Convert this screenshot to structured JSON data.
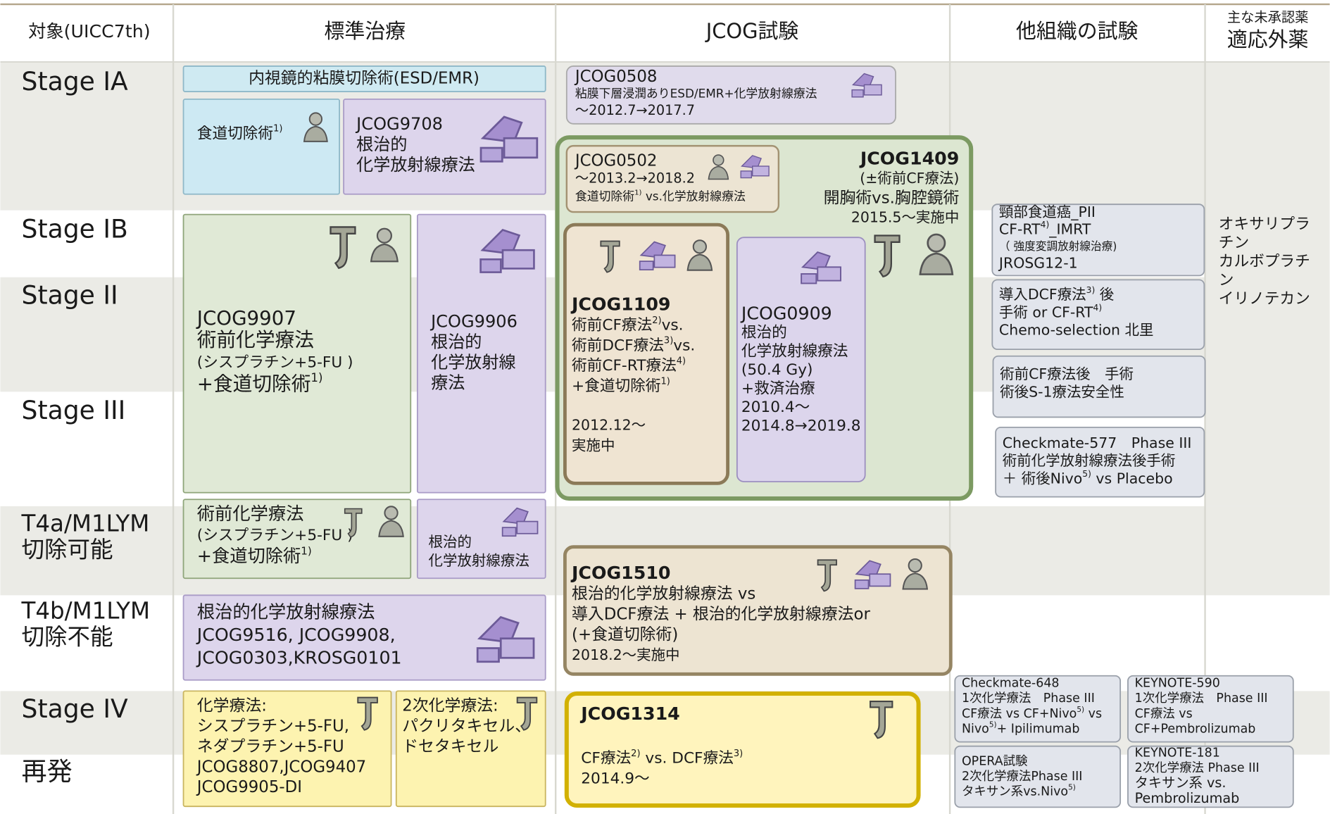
{
  "header": {
    "target": "対象(UICC7th)",
    "standard": "標準治療",
    "jcog": "JCOG試験",
    "other": "他組織の試験",
    "drugs_note": "主な未承認薬",
    "drugs": "適応外薬"
  },
  "rows": [
    [
      "Stage IA"
    ],
    [
      "Stage IB"
    ],
    [
      "Stage II"
    ],
    [
      "Stage III"
    ],
    [
      "T4a/M1LYM",
      "切除可能"
    ],
    [
      "T4b/M1LYM",
      "切除不能"
    ],
    [
      "Stage IV"
    ],
    [
      "再発"
    ]
  ],
  "boxes": [
    {
      "lines": [
        "内視鏡的粘膜切除術(ESD/EMR)"
      ]
    },
    {
      "lines": [
        [
          "食道切除術",
          "1)"
        ]
      ]
    },
    {
      "lines": [
        "JCOG9708",
        "根治的",
        "化学放射線療法"
      ]
    },
    {
      "lines": [
        "JCOG9907",
        "術前化学療法",
        "(シスプラチン+5-FU )",
        [
          "+食道切除術",
          "1)"
        ]
      ]
    },
    {
      "lines": [
        "JCOG9906",
        "根治的",
        "化学放射線",
        "療法"
      ]
    },
    {
      "lines": [
        "術前化学療法",
        "(シスプラチン+5-FU )",
        [
          "+食道切除術",
          "1)"
        ]
      ]
    },
    {
      "lines": [
        "根治的",
        "化学放射線療法"
      ]
    },
    {
      "lines": [
        "根治的化学放射線療法",
        "JCOG9516, JCOG9908,",
        "JCOG0303,KROSG0101"
      ]
    },
    {
      "lines": [
        "化学療法:",
        "シスプラチン+5-FU,",
        "ネダプラチン+5-FU",
        "JCOG8807,JCOG9407",
        "JCOG9905-DI"
      ]
    },
    {
      "lines": [
        "2次化学療法:",
        "パクリタキセル、",
        "ドセタキセル"
      ]
    },
    {
      "lines": [
        "JCOG0508",
        "粘膜下層浸潤ありESD/EMR+化学放射線療法",
        "～2012.7→2017.7"
      ]
    },
    {
      "lines": [
        "JCOG1409",
        "(±術前CF療法)",
        "開胸術vs.胸腔鏡術",
        "2015.5～実施中"
      ]
    },
    {
      "lines": [
        "JCOG0502",
        "～2013.2→2018.2",
        [
          "食道切除術",
          "1)",
          " vs.化学放射線療法"
        ]
      ]
    },
    {
      "lines": [
        "JCOG1109",
        [
          "術前CF療法",
          "2)",
          "vs."
        ],
        [
          "術前DCF療法",
          "3)",
          "vs."
        ],
        [
          "術前CF-RT療法",
          "4)"
        ],
        [
          "+食道切除術",
          "1)"
        ],
        "2012.12～",
        "実施中"
      ]
    },
    {
      "lines": [
        "JCOG0909",
        "根治的",
        "化学放射線療法",
        "(50.4 Gy)",
        "+救済治療",
        "2010.4～",
        "2014.8→2019.8"
      ]
    },
    {
      "lines": [
        "JCOG1510",
        "根治的化学放射線療法 vs",
        "導入DCF療法 + 根治的化学放射線療法or",
        "(+食道切除術)",
        "2018.2～実施中"
      ]
    },
    {
      "lines": [
        "JCOG1314",
        [
          "CF療法",
          "2)",
          " vs. DCF療法",
          "3)"
        ],
        "2014.9～"
      ]
    },
    {
      "lines": [
        "頸部食道癌_PII",
        [
          "CF-RT",
          "4)",
          "_IMRT"
        ],
        "（ 強度変調放射線治療)",
        "JROSG12-1"
      ]
    },
    {
      "lines": [
        [
          "導入DCF療法",
          "3)",
          " 後"
        ],
        [
          "手術 or CF-RT",
          "4)"
        ],
        "Chemo-selection 北里"
      ]
    },
    {
      "lines": [
        "術前CF療法後　手術",
        "術後S-1療法安全性"
      ]
    },
    {
      "lines": [
        "Checkmate-577　Phase III",
        "術前化学放射線療法後手術",
        [
          "＋ 術後Nivo",
          "5)",
          " vs Placebo"
        ]
      ]
    },
    {
      "lines": [
        "Checkmate-648",
        "1次化学療法　Phase III",
        [
          "CF療法 vs CF+Nivo",
          "5)",
          " vs"
        ],
        [
          "Nivo",
          "5)",
          "+ Ipilimumab"
        ]
      ]
    },
    {
      "lines": [
        "KEYNOTE-590",
        "1次化学療法　Phase III",
        "CF療法 vs",
        "CF+Pembrolizumab"
      ]
    },
    {
      "lines": [
        "OPERA試験",
        "2次化学療法Phase III",
        [
          "タキサン系vs.Nivo",
          "5)"
        ]
      ]
    },
    {
      "lines": [
        "KEYNOTE-181",
        "2次化学療法 Phase III",
        "タキサン系 vs.",
        "Pembrolizumab"
      ]
    }
  ],
  "unapproved_drugs": [
    "オキサリプラ",
    "チン",
    "カルボプラチ",
    "ン",
    "イリノテカン"
  ]
}
